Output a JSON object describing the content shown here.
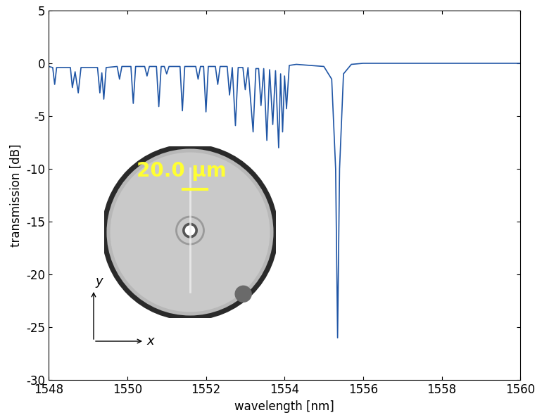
{
  "chart_data": {
    "type": "line",
    "x_label": "wavelength [nm]",
    "y_label": "transmission [dB]",
    "x": [
      1548.0,
      1548.1,
      1548.15,
      1548.2,
      1548.55,
      1548.6,
      1548.67,
      1548.75,
      1548.82,
      1549.24,
      1549.3,
      1549.35,
      1549.4,
      1549.46,
      1549.74,
      1549.8,
      1549.86,
      1550.09,
      1550.15,
      1550.21,
      1550.44,
      1550.5,
      1550.56,
      1550.74,
      1550.8,
      1550.86,
      1550.94,
      1551.0,
      1551.06,
      1551.34,
      1551.4,
      1551.46,
      1551.74,
      1551.8,
      1551.86,
      1551.94,
      1552.0,
      1552.06,
      1552.24,
      1552.3,
      1552.36,
      1552.54,
      1552.6,
      1552.67,
      1552.75,
      1552.82,
      1552.94,
      1553.0,
      1553.07,
      1553.2,
      1553.27,
      1553.34,
      1553.4,
      1553.47,
      1553.55,
      1553.62,
      1553.7,
      1553.77,
      1553.85,
      1553.9,
      1553.95,
      1554.0,
      1554.05,
      1554.12,
      1554.3,
      1555.0,
      1555.2,
      1555.3,
      1555.35,
      1555.4,
      1555.5,
      1555.7,
      1556.0,
      1558.0,
      1560.0
    ],
    "values": [
      -0.3,
      -0.4,
      -2.0,
      -0.4,
      -0.4,
      -2.3,
      -0.8,
      -2.8,
      -0.4,
      -0.4,
      -2.8,
      -0.9,
      -3.4,
      -0.4,
      -0.3,
      -1.5,
      -0.3,
      -0.3,
      -3.8,
      -0.3,
      -0.3,
      -1.2,
      -0.3,
      -0.3,
      -4.1,
      -0.3,
      -0.3,
      -1.0,
      -0.3,
      -0.3,
      -4.5,
      -0.3,
      -0.3,
      -1.5,
      -0.3,
      -0.3,
      -4.6,
      -0.3,
      -0.3,
      -2.0,
      -0.3,
      -0.3,
      -3.0,
      -0.4,
      -5.9,
      -0.4,
      -0.4,
      -2.5,
      -0.4,
      -6.5,
      -0.5,
      -0.5,
      -4.0,
      -0.5,
      -7.3,
      -0.6,
      -5.8,
      -0.7,
      -8.0,
      -1.0,
      -6.5,
      -1.2,
      -4.3,
      -0.2,
      -0.1,
      -0.3,
      -1.5,
      -10.0,
      -26.0,
      -10.0,
      -1.0,
      -0.1,
      0.0,
      0.0,
      0.0
    ],
    "color": "#1f55a5",
    "xlim": [
      1548,
      1560
    ],
    "xticks": [
      1548,
      1550,
      1552,
      1554,
      1556,
      1558,
      1560
    ],
    "ylim": [
      -30,
      5
    ],
    "yticks": [
      -30,
      -25,
      -20,
      -15,
      -10,
      -5,
      0,
      5
    ],
    "grid": false,
    "annotations": [
      {
        "text": "20.0 µm",
        "color": "#ffff33"
      },
      {
        "text": "x"
      },
      {
        "text": "y"
      }
    ]
  }
}
